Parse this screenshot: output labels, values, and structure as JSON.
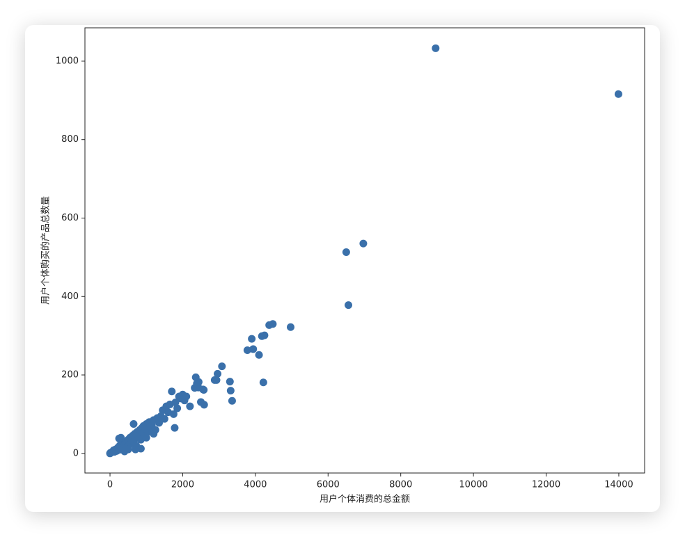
{
  "chart_data": {
    "type": "scatter",
    "x_label": "用户个体消费的总金额",
    "y_label": "用户个体购买的产品总数量",
    "color": "#3a70aa",
    "xlim": [
      -690,
      14710
    ],
    "xticks": [
      0,
      2000,
      4000,
      6000,
      8000,
      10000,
      12000,
      14000
    ],
    "ylim": [
      -50,
      1085
    ],
    "yticks": [
      0,
      200,
      400,
      600,
      800,
      1000
    ],
    "x": [
      0,
      20,
      50,
      80,
      100,
      120,
      150,
      180,
      200,
      220,
      250,
      270,
      300,
      320,
      350,
      380,
      400,
      420,
      450,
      480,
      500,
      520,
      550,
      580,
      600,
      620,
      650,
      680,
      700,
      720,
      750,
      780,
      800,
      820,
      850,
      880,
      900,
      920,
      950,
      980,
      1000,
      1050,
      1080,
      1100,
      1150,
      1200,
      1250,
      1300,
      1350,
      1400,
      1450,
      1500,
      1550,
      1600,
      1650,
      1700,
      1750,
      1780,
      1800,
      1850,
      1900,
      1950,
      2000,
      2050,
      2100,
      2200,
      650,
      700,
      300,
      250,
      400,
      500,
      850,
      1000,
      1200,
      2330,
      2360,
      2390,
      2430,
      2440,
      2500,
      2560,
      2580,
      2590,
      2880,
      2930,
      2960,
      3080,
      3300,
      3320,
      3360,
      3780,
      3900,
      3940,
      4100,
      4180,
      4220,
      4250,
      4380,
      4480,
      4970,
      6500,
      6560,
      6970,
      8960,
      13990
    ],
    "values": [
      0,
      2,
      3,
      5,
      8,
      4,
      10,
      6,
      12,
      15,
      9,
      20,
      14,
      18,
      25,
      12,
      22,
      30,
      16,
      28,
      35,
      20,
      40,
      25,
      33,
      45,
      30,
      50,
      38,
      20,
      55,
      42,
      48,
      60,
      35,
      65,
      52,
      70,
      45,
      62,
      75,
      55,
      80,
      68,
      72,
      85,
      60,
      90,
      78,
      95,
      110,
      88,
      120,
      105,
      125,
      158,
      100,
      65,
      130,
      115,
      145,
      140,
      150,
      135,
      145,
      120,
      75,
      10,
      40,
      38,
      5,
      10,
      12,
      40,
      50,
      167,
      194,
      178,
      168,
      182,
      131,
      163,
      162,
      124,
      187,
      187,
      203,
      222,
      183,
      160,
      134,
      263,
      292,
      266,
      251,
      299,
      181,
      301,
      327,
      330,
      322,
      513,
      378,
      535,
      1033,
      916
    ]
  }
}
